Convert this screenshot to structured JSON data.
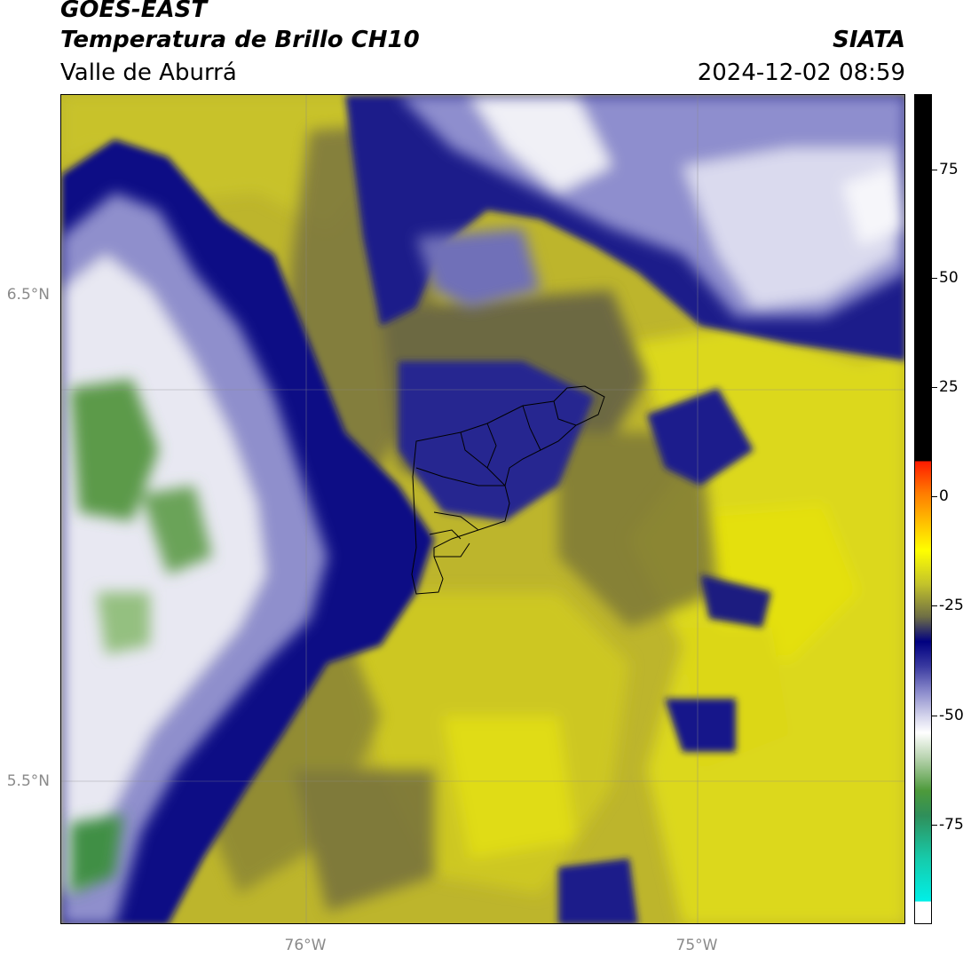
{
  "header": {
    "satellite": "GOES-EAST",
    "product": "Temperatura de Brillo CH10",
    "region": "Valle de Aburrá",
    "organization": "SIATA",
    "datetime": "2024-12-02 08:59"
  },
  "map": {
    "lat_labels": [
      "6.5°N",
      "5.5°N"
    ],
    "lon_labels": [
      "76°W",
      "75°W"
    ]
  },
  "colorbar": {
    "tick_labels": [
      "75",
      "50",
      "25",
      "0",
      "-25",
      "-50",
      "-75"
    ]
  },
  "colors": {
    "yellow": "#e2e20c",
    "olive": "#b4ad2f",
    "dark_olive": "#6a6a3c",
    "navy": "#000080",
    "lavender": "#8c8ccc",
    "white": "#f4f4f8",
    "green": "#4a8a3e"
  }
}
